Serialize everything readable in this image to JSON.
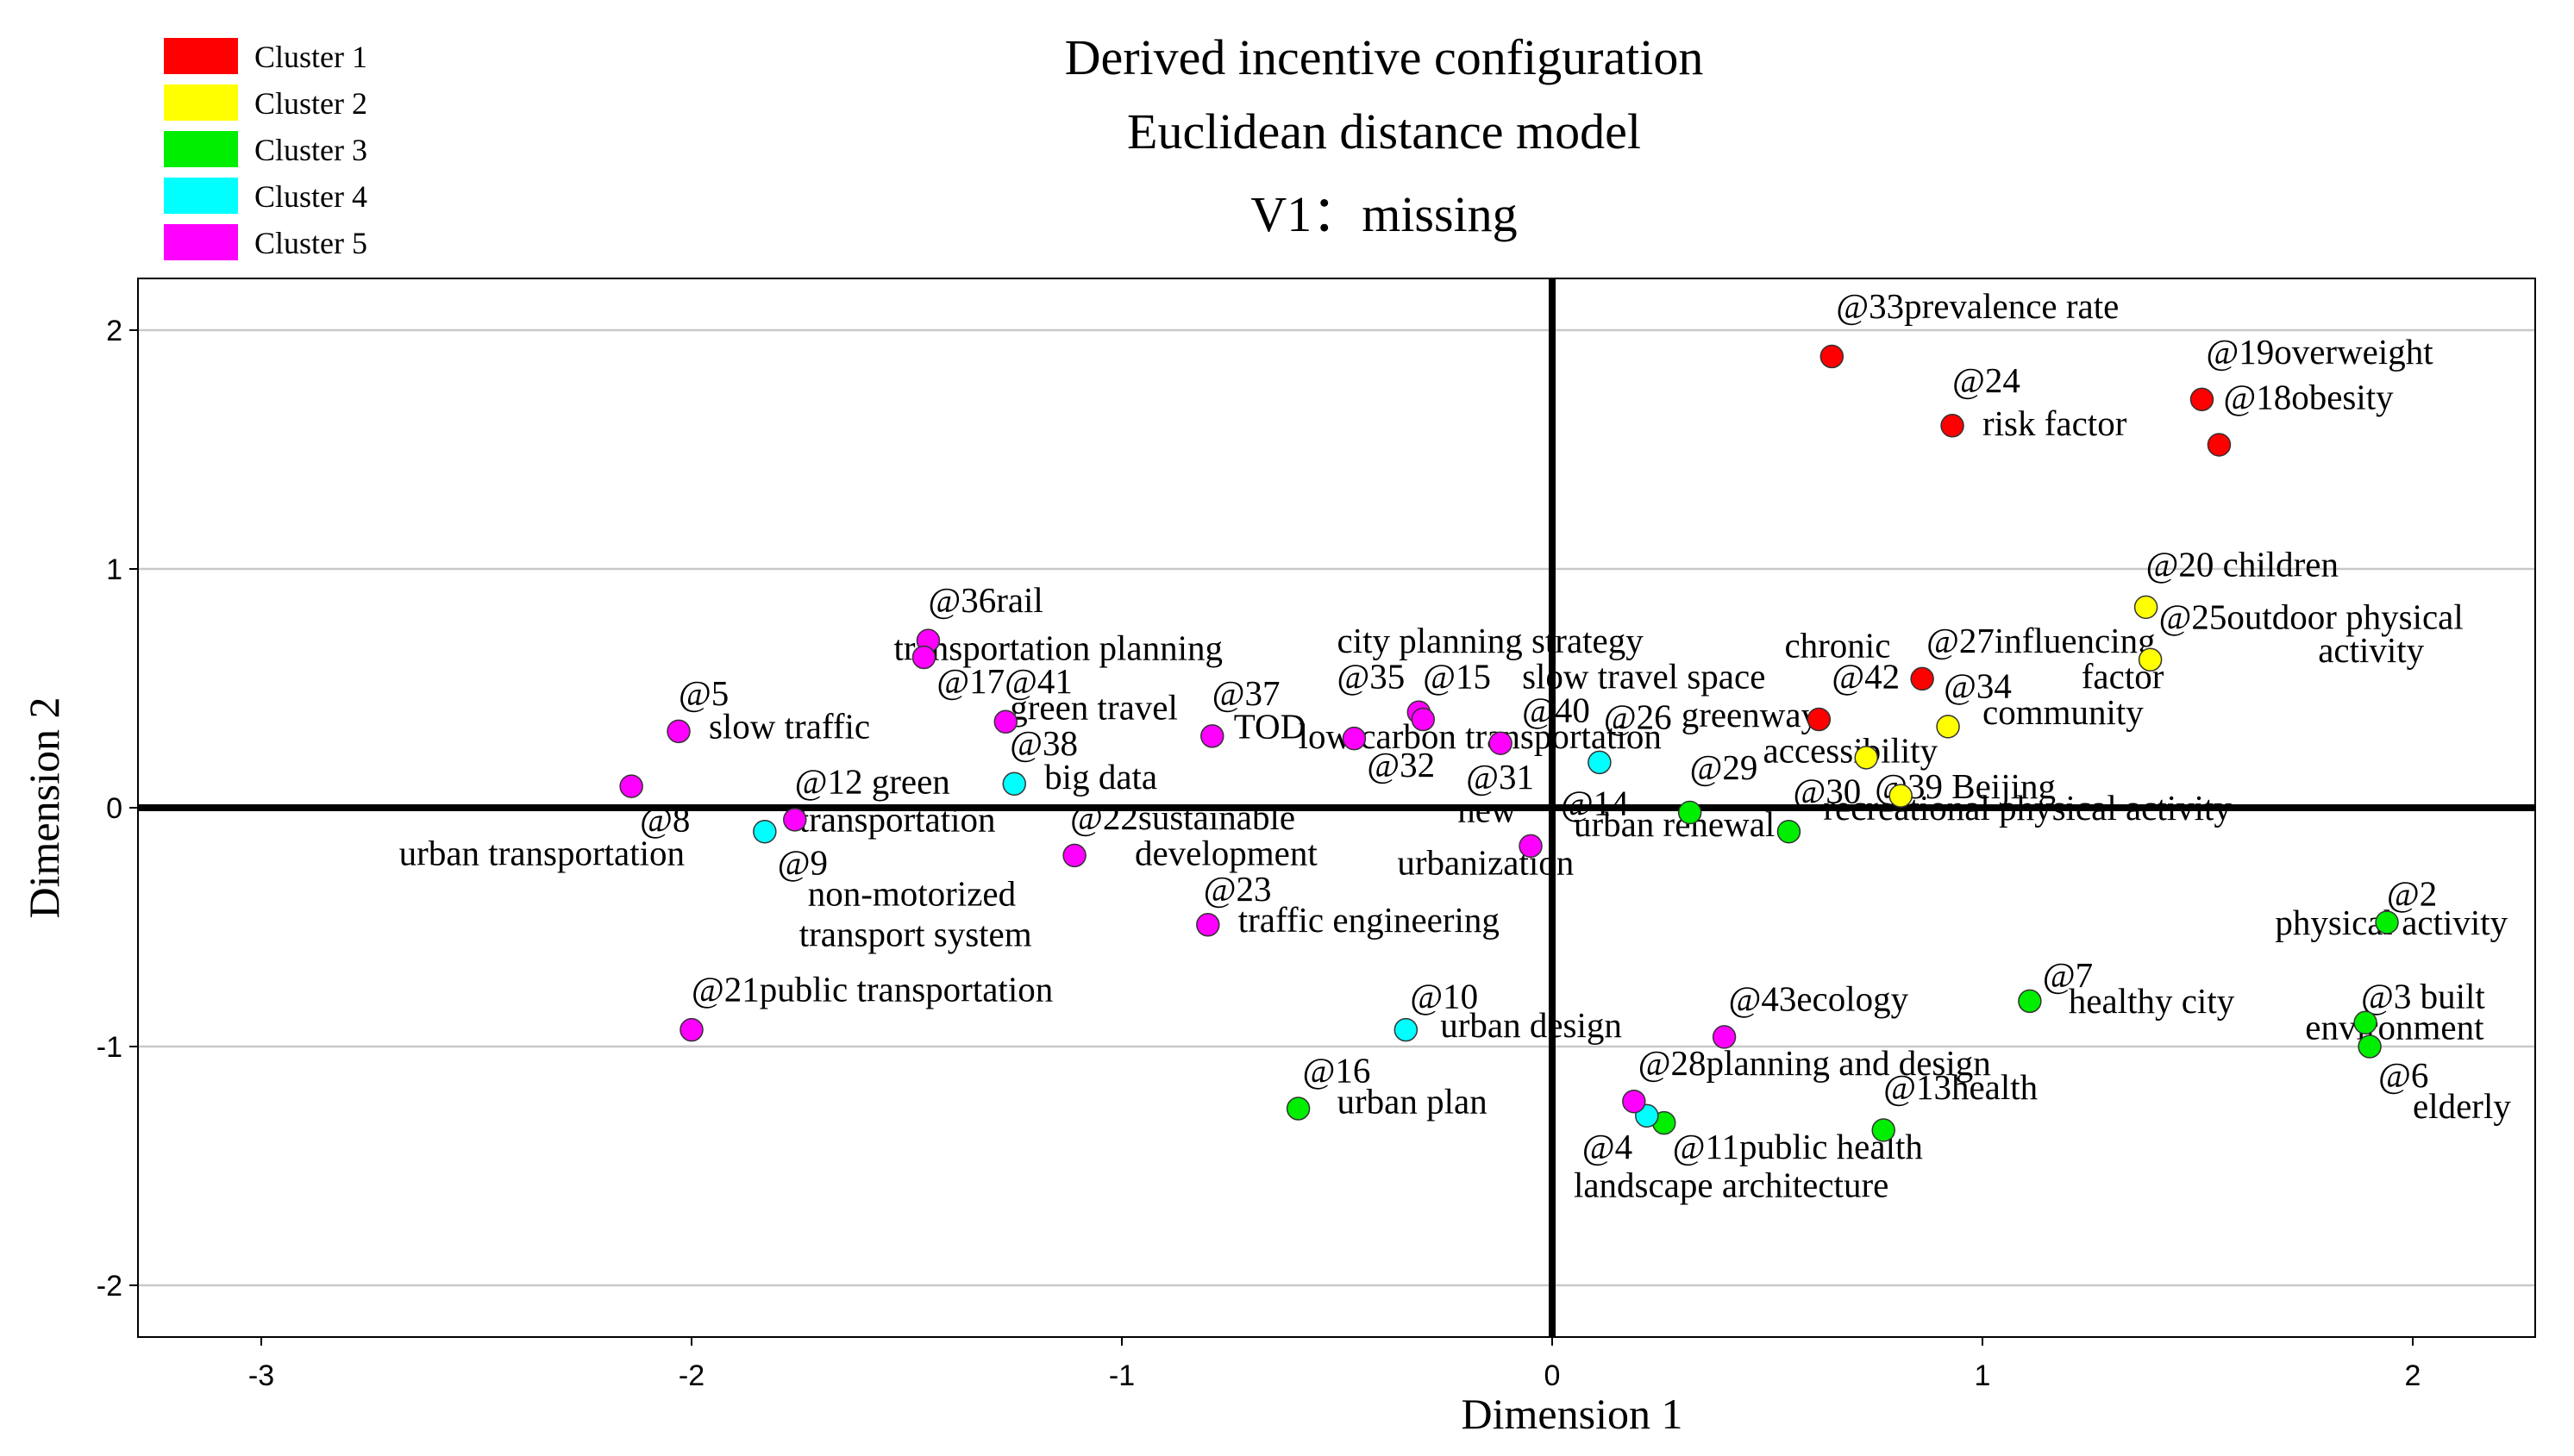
{
  "chart_data": {
    "type": "scatter",
    "title": [
      "Derived incentive configuration",
      "Euclidean distance model"
    ],
    "subtitle": "V1：missing",
    "xlabel": "Dimension 1",
    "ylabel": "Dimension 2",
    "xlim": [
      -3.3,
      2.3
    ],
    "ylim": [
      -2.2,
      2.2
    ],
    "xticks": [
      -3,
      -2,
      -1,
      0,
      1,
      2
    ],
    "yticks": [
      -2,
      -1,
      0,
      1,
      2
    ],
    "grid": "horizontal",
    "legend_position": "top-left",
    "clusters": [
      {
        "name": "Cluster 1",
        "color": "#ff0000"
      },
      {
        "name": "Cluster 2",
        "color": "#ffff00"
      },
      {
        "name": "Cluster 3",
        "color": "#00ee00"
      },
      {
        "name": "Cluster 4",
        "color": "#00ffff"
      },
      {
        "name": "Cluster 5",
        "color": "#ff00ff"
      }
    ],
    "points": [
      {
        "id": "@33",
        "term": "prevalence rate",
        "x": 0.65,
        "y": 1.89,
        "cluster": 1
      },
      {
        "id": "@24",
        "term": "risk factor",
        "x": 0.93,
        "y": 1.6,
        "cluster": 1
      },
      {
        "id": "@19",
        "term": "overweight",
        "x": 1.51,
        "y": 1.71,
        "cluster": 1
      },
      {
        "id": "@18",
        "term": "obesity",
        "x": 1.55,
        "y": 1.52,
        "cluster": 1
      },
      {
        "id": "@27",
        "term": "chronic influencing factor",
        "x": 0.86,
        "y": 0.54,
        "cluster": 1
      },
      {
        "id": "@42",
        "term": "slow travel space",
        "x": 0.62,
        "y": 0.37,
        "cluster": 1
      },
      {
        "id": "@20",
        "term": "children",
        "x": 1.38,
        "y": 0.84,
        "cluster": 2
      },
      {
        "id": "@25",
        "term": "outdoor physical activity",
        "x": 1.39,
        "y": 0.62,
        "cluster": 2
      },
      {
        "id": "@34",
        "term": "community",
        "x": 0.92,
        "y": 0.34,
        "cluster": 2
      },
      {
        "id": "@30",
        "term": "accessibility",
        "x": 0.73,
        "y": 0.21,
        "cluster": 2
      },
      {
        "id": "@39",
        "term": "Beijing",
        "x": 0.81,
        "y": 0.05,
        "cluster": 2
      },
      {
        "id": "@2",
        "term": "physical activity",
        "x": 1.94,
        "y": -0.48,
        "cluster": 3
      },
      {
        "id": "@3",
        "term": "built environment",
        "x": 1.89,
        "y": -0.9,
        "cluster": 3
      },
      {
        "id": "@6",
        "term": "elderly",
        "x": 1.9,
        "y": -1.0,
        "cluster": 3
      },
      {
        "id": "@7",
        "term": "healthy city",
        "x": 1.11,
        "y": -0.81,
        "cluster": 3
      },
      {
        "id": "@13",
        "term": "health",
        "x": 0.77,
        "y": -1.35,
        "cluster": 3
      },
      {
        "id": "@11",
        "term": "public health",
        "x": 0.26,
        "y": -1.32,
        "cluster": 3
      },
      {
        "id": "@16",
        "term": "urban plan",
        "x": -0.59,
        "y": -1.26,
        "cluster": 3
      },
      {
        "id": "@29",
        "term": "urban renewal",
        "x": 0.32,
        "y": -0.02,
        "cluster": 3
      },
      {
        "id": "@41",
        "term": "recreational physical activity",
        "x": 0.55,
        "y": -0.1,
        "cluster": 3
      },
      {
        "id": "@10",
        "term": "urban design",
        "x": -0.34,
        "y": -0.93,
        "cluster": 4
      },
      {
        "id": "@4",
        "term": "landscape architecture",
        "x": 0.22,
        "y": -1.29,
        "cluster": 4
      },
      {
        "id": "@26",
        "term": "greenway",
        "x": 0.11,
        "y": 0.19,
        "cluster": 4
      },
      {
        "id": "@38",
        "term": "big data",
        "x": -1.25,
        "y": 0.1,
        "cluster": 4
      },
      {
        "id": "@9",
        "term": "non-motorized transport system",
        "x": -1.83,
        "y": -0.1,
        "cluster": 4
      },
      {
        "id": "@36",
        "term": "rail",
        "x": -1.45,
        "y": 0.7,
        "cluster": 5
      },
      {
        "id": "@1",
        "term": "transportation planning",
        "x": -1.46,
        "y": 0.63,
        "cluster": 5
      },
      {
        "id": "@5",
        "term": "slow traffic",
        "x": -2.03,
        "y": 0.32,
        "cluster": 5
      },
      {
        "id": "@17",
        "term": "green travel",
        "x": -1.27,
        "y": 0.36,
        "cluster": 5
      },
      {
        "id": "@37",
        "term": "TOD",
        "x": -0.79,
        "y": 0.3,
        "cluster": 5
      },
      {
        "id": "@35",
        "term": "city planning strategy",
        "x": -0.46,
        "y": 0.29,
        "cluster": 5
      },
      {
        "id": "@15",
        "term": "low carbon transportation",
        "x": -0.31,
        "y": 0.4,
        "cluster": 5
      },
      {
        "id": "@32",
        "term": "low carbon",
        "x": -0.3,
        "y": 0.37,
        "cluster": 5
      },
      {
        "id": "@40",
        "term": "new urbanization",
        "x": -0.12,
        "y": 0.27,
        "cluster": 5
      },
      {
        "id": "@14",
        "term": "new urbanization",
        "x": -0.05,
        "y": -0.16,
        "cluster": 5
      },
      {
        "id": "@8",
        "term": "urban transportation",
        "x": -2.14,
        "y": 0.09,
        "cluster": 5
      },
      {
        "id": "@12",
        "term": "green transportation",
        "x": -1.76,
        "y": -0.05,
        "cluster": 5
      },
      {
        "id": "@22",
        "term": "sustainable development",
        "x": -1.11,
        "y": -0.2,
        "cluster": 5
      },
      {
        "id": "@23",
        "term": "traffic engineering",
        "x": -0.8,
        "y": -0.49,
        "cluster": 5
      },
      {
        "id": "@21",
        "term": "public transportation",
        "x": -2.0,
        "y": -0.93,
        "cluster": 5
      },
      {
        "id": "@43",
        "term": "ecology",
        "x": 0.4,
        "y": -0.96,
        "cluster": 5
      },
      {
        "id": "@28",
        "term": "planning and design",
        "x": 0.19,
        "y": -1.23,
        "cluster": 5
      }
    ],
    "labels": [
      {
        "text": "@33prevalence rate",
        "x": 0.66,
        "y": 2.05
      },
      {
        "text": "@24",
        "x": 0.93,
        "y": 1.74
      },
      {
        "text": "risk factor",
        "x": 1.0,
        "y": 1.56
      },
      {
        "text": "@19overweight",
        "x": 1.52,
        "y": 1.86
      },
      {
        "text": "@18obesity",
        "x": 1.56,
        "y": 1.67
      },
      {
        "text": "@20 children",
        "x": 1.38,
        "y": 0.97
      },
      {
        "text": "@25outdoor physical",
        "x": 1.41,
        "y": 0.75
      },
      {
        "text": "activity",
        "x": 1.78,
        "y": 0.61
      },
      {
        "text": "chronic",
        "x": 0.54,
        "y": 0.63
      },
      {
        "text": "@27influencing",
        "x": 0.87,
        "y": 0.65
      },
      {
        "text": "factor",
        "x": 1.23,
        "y": 0.5
      },
      {
        "text": "slow travel space",
        "x": -0.07,
        "y": 0.5
      },
      {
        "text": "@42",
        "x": 0.65,
        "y": 0.5
      },
      {
        "text": "@34",
        "x": 0.91,
        "y": 0.46
      },
      {
        "text": "community",
        "x": 1.0,
        "y": 0.35
      },
      {
        "text": "city planning strategy",
        "x": -0.5,
        "y": 0.65
      },
      {
        "text": "@35",
        "x": -0.5,
        "y": 0.5
      },
      {
        "text": "@15",
        "x": -0.3,
        "y": 0.5
      },
      {
        "text": "@40",
        "x": -0.07,
        "y": 0.36
      },
      {
        "text": "@26",
        "x": 0.12,
        "y": 0.33
      },
      {
        "text": "greenway",
        "x": 0.3,
        "y": 0.34
      },
      {
        "text": "low carbon transportation",
        "x": -0.59,
        "y": 0.25
      },
      {
        "text": "accessibility",
        "x": 0.49,
        "y": 0.19
      },
      {
        "text": "@29",
        "x": 0.32,
        "y": 0.12
      },
      {
        "text": "@32",
        "x": -0.43,
        "y": 0.13
      },
      {
        "text": "@31",
        "x": -0.2,
        "y": 0.08
      },
      {
        "text": "@30",
        "x": 0.56,
        "y": 0.02
      },
      {
        "text": "@39 Beijing",
        "x": 0.75,
        "y": 0.04
      },
      {
        "text": "@14",
        "x": 0.02,
        "y": -0.03
      },
      {
        "text": "new",
        "x": -0.22,
        "y": -0.06
      },
      {
        "text": "urban renewal",
        "x": 0.05,
        "y": -0.12
      },
      {
        "text": "recreational physical activity",
        "x": 0.63,
        "y": -0.05
      },
      {
        "text": "urbanization",
        "x": -0.36,
        "y": -0.28
      },
      {
        "text": "@36rail",
        "x": -1.45,
        "y": 0.82
      },
      {
        "text": "transportation planning",
        "x": -1.53,
        "y": 0.62
      },
      {
        "text": "@17@41",
        "x": -1.43,
        "y": 0.48
      },
      {
        "text": "green travel",
        "x": -1.26,
        "y": 0.37
      },
      {
        "text": "@37",
        "x": -0.79,
        "y": 0.43
      },
      {
        "text": "TOD",
        "x": -0.74,
        "y": 0.29
      },
      {
        "text": "@5",
        "x": -2.03,
        "y": 0.43
      },
      {
        "text": "slow traffic",
        "x": -1.96,
        "y": 0.29
      },
      {
        "text": "@38",
        "x": -1.26,
        "y": 0.22
      },
      {
        "text": "big data",
        "x": -1.18,
        "y": 0.08
      },
      {
        "text": "@12 green",
        "x": -1.76,
        "y": 0.06
      },
      {
        "text": "@8",
        "x": -2.12,
        "y": -0.1
      },
      {
        "text": "transportation",
        "x": -1.75,
        "y": -0.1
      },
      {
        "text": "@22sustainable",
        "x": -1.12,
        "y": -0.09
      },
      {
        "text": "urban transportation",
        "x": -2.68,
        "y": -0.24
      },
      {
        "text": "development",
        "x": -0.97,
        "y": -0.24
      },
      {
        "text": "@9",
        "x": -1.8,
        "y": -0.28
      },
      {
        "text": "non-motorized",
        "x": -1.73,
        "y": -0.41
      },
      {
        "text": "@23",
        "x": -0.81,
        "y": -0.39
      },
      {
        "text": "transport system",
        "x": -1.75,
        "y": -0.58
      },
      {
        "text": "traffic engineering",
        "x": -0.73,
        "y": -0.52
      },
      {
        "text": "@2",
        "x": 1.94,
        "y": -0.41
      },
      {
        "text": "physical activity",
        "x": 1.68,
        "y": -0.53
      },
      {
        "text": "@7",
        "x": 1.14,
        "y": -0.75
      },
      {
        "text": "healthy city",
        "x": 1.2,
        "y": -0.86
      },
      {
        "text": "@3 built",
        "x": 1.88,
        "y": -0.84
      },
      {
        "text": "environment",
        "x": 1.75,
        "y": -0.97
      },
      {
        "text": "@21public transportation",
        "x": -2.0,
        "y": -0.81
      },
      {
        "text": "@10",
        "x": -0.33,
        "y": -0.84
      },
      {
        "text": "urban design",
        "x": -0.26,
        "y": -0.96
      },
      {
        "text": "@43ecology",
        "x": 0.41,
        "y": -0.85
      },
      {
        "text": "@28planning and design",
        "x": 0.2,
        "y": -1.12
      },
      {
        "text": "@13health",
        "x": 0.77,
        "y": -1.22
      },
      {
        "text": "@6",
        "x": 1.92,
        "y": -1.17
      },
      {
        "text": "elderly",
        "x": 2.0,
        "y": -1.3
      },
      {
        "text": "@16",
        "x": -0.58,
        "y": -1.15
      },
      {
        "text": "urban plan",
        "x": -0.5,
        "y": -1.28
      },
      {
        "text": "@4",
        "x": 0.07,
        "y": -1.47
      },
      {
        "text": "@11public health",
        "x": 0.28,
        "y": -1.47
      },
      {
        "text": "landscape architecture",
        "x": 0.05,
        "y": -1.63
      }
    ]
  }
}
